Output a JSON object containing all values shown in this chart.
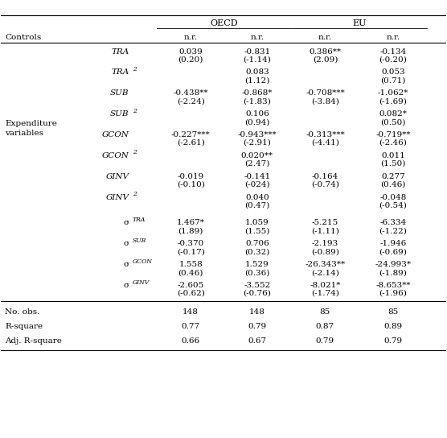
{
  "rows": [
    {
      "label": "TRA",
      "italic": true,
      "sup": "",
      "sup_italic": true,
      "vals": [
        "0.039",
        "-0.831",
        "0.386**",
        "-0.134"
      ],
      "tvals": [
        "(0.20)",
        "(-1.14)",
        "(2.09)",
        "(-0.20)"
      ]
    },
    {
      "label": "TRA",
      "italic": true,
      "sup": "2",
      "sup_italic": true,
      "vals": [
        "",
        "0.083",
        "",
        "0.053"
      ],
      "tvals": [
        "",
        "(1.12)",
        "",
        "(0.71)"
      ]
    },
    {
      "label": "SUB",
      "italic": true,
      "sup": "",
      "sup_italic": true,
      "vals": [
        "-0.438**",
        "-0.868*",
        "-0.708***",
        "-1.062*"
      ],
      "tvals": [
        "(-2.24)",
        "(-1.83)",
        "(-3.84)",
        "(-1.69)"
      ]
    },
    {
      "label": "SUB",
      "italic": true,
      "sup": "2",
      "sup_italic": true,
      "vals": [
        "",
        "0.106",
        "",
        "0.082*"
      ],
      "tvals": [
        "",
        "(0.94)",
        "",
        "(0.50)"
      ]
    },
    {
      "label": "GCON",
      "italic": true,
      "sup": "",
      "sup_italic": true,
      "vals": [
        "-0.227***",
        "-0.943***",
        "-0.313***",
        "-0.719**"
      ],
      "tvals": [
        "(-2.61)",
        "(-2.91)",
        "(-4.41)",
        "(-2.46)"
      ]
    },
    {
      "label": "GCON",
      "italic": true,
      "sup": "2",
      "sup_italic": true,
      "vals": [
        "",
        "0.020**",
        "",
        "0.011"
      ],
      "tvals": [
        "",
        "(2.47)",
        "",
        "(1.50)"
      ]
    },
    {
      "label": "GINV",
      "italic": true,
      "sup": "",
      "sup_italic": true,
      "vals": [
        "-0.019",
        "-0.141",
        "-0.164",
        "0.277"
      ],
      "tvals": [
        "(-0.10)",
        "(-024)",
        "(-0.74)",
        "(0.46)"
      ]
    },
    {
      "label": "GINV",
      "italic": true,
      "sup": "2",
      "sup_italic": true,
      "vals": [
        "",
        "0.040",
        "",
        "-0.048"
      ],
      "tvals": [
        "",
        "(0.47)",
        "",
        "(-0.54)"
      ]
    },
    {
      "label": "σ",
      "italic": false,
      "sup": "TRA",
      "sup_italic": true,
      "vals": [
        "1.467*",
        "1.059",
        "-5.215",
        "-6.334"
      ],
      "tvals": [
        "(1.89)",
        "(1.55)",
        "(-1.11)",
        "(-1.22)"
      ]
    },
    {
      "label": "σ",
      "italic": false,
      "sup": "SUB",
      "sup_italic": true,
      "vals": [
        "-0.370",
        "0.706",
        "-2.193",
        "-1.946"
      ],
      "tvals": [
        "(-0.17)",
        "(0.32)",
        "(-0.89)",
        "(-0.69)"
      ]
    },
    {
      "label": "σ",
      "italic": false,
      "sup": "GCON",
      "sup_italic": true,
      "vals": [
        "1.558",
        "1.529",
        "-26.343**",
        "-24.993*"
      ],
      "tvals": [
        "(0.46)",
        "(0.36)",
        "(-2.14)",
        "(-1.89)"
      ]
    },
    {
      "label": "σ",
      "italic": false,
      "sup": "GINV",
      "sup_italic": true,
      "vals": [
        "-2.605",
        "-3.552",
        "-8.021*",
        "-8.653**"
      ],
      "tvals": [
        "(-0.62)",
        "(-0.76)",
        "(-1.74)",
        "(-1.96)"
      ]
    }
  ],
  "bottom_rows": [
    {
      "label": "No. obs.",
      "vals": [
        "148",
        "148",
        "85",
        "85"
      ]
    },
    {
      "label": "R-square",
      "vals": [
        "0.77",
        "0.79",
        "0.87",
        "0.89"
      ]
    },
    {
      "label": "Adj. R-square",
      "vals": [
        "0.66",
        "0.67",
        "0.79",
        "0.79"
      ]
    }
  ],
  "bg_color": "#ffffff",
  "text_color": "#000000",
  "line_color": "#000000",
  "font_size": 7.5
}
